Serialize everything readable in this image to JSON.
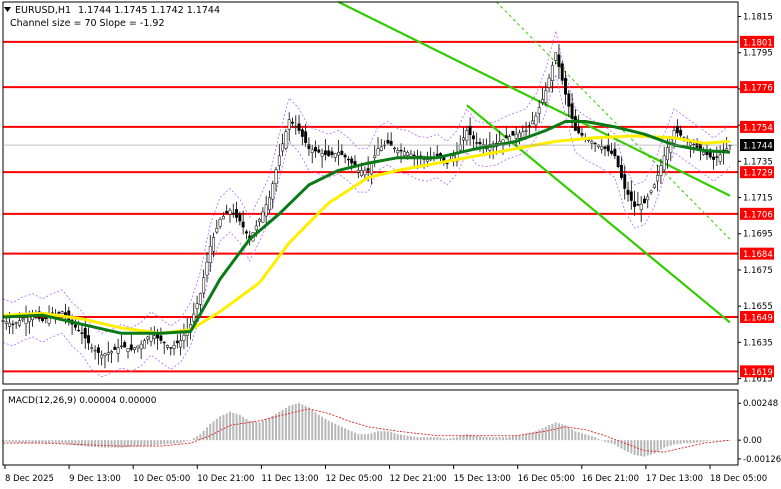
{
  "chart_data": {
    "type": "line",
    "symbol": "EURUSD,H1",
    "ohlc_header": "1.1744 1.1745 1.1742 1.1744",
    "indicator_text": "Channel size = 70 Slope = -1.92",
    "current_price": 1.1744,
    "ylim": [
      1.1612,
      1.1823
    ],
    "y_ticks": [
      "1.1815",
      "1.1795",
      "1.1775",
      "1.1755",
      "1.1735",
      "1.1715",
      "1.1695",
      "1.1675",
      "1.1655",
      "1.1635",
      "1.1615"
    ],
    "x_ticks": [
      "8 Dec 2025",
      "9 Dec 13:00",
      "10 Dec 05:00",
      "10 Dec 21:00",
      "11 Dec 13:00",
      "12 Dec 05:00",
      "12 Dec 21:00",
      "15 Dec 13:00",
      "16 Dec 05:00",
      "16 Dec 21:00",
      "17 Dec 13:00",
      "18 Dec 05:00"
    ],
    "levels": [
      {
        "label": "1.1801",
        "value": 1.1801
      },
      {
        "label": "1.1776",
        "value": 1.1776
      },
      {
        "label": "1.1754",
        "value": 1.1754
      },
      {
        "label": "1.1729",
        "value": 1.1729
      },
      {
        "label": "1.1706",
        "value": 1.1706
      },
      {
        "label": "1.1684",
        "value": 1.1684
      },
      {
        "label": "1.1649",
        "value": 1.1649
      },
      {
        "label": "1.1619",
        "value": 1.1619
      }
    ],
    "price_close": [
      [
        0,
        1.1647
      ],
      [
        3,
        1.1645
      ],
      [
        6,
        1.1648
      ],
      [
        9,
        1.165
      ],
      [
        12,
        1.1647
      ],
      [
        15,
        1.165
      ],
      [
        18,
        1.1652
      ],
      [
        21,
        1.1645
      ],
      [
        24,
        1.164
      ],
      [
        27,
        1.1632
      ],
      [
        30,
        1.1628
      ],
      [
        33,
        1.163
      ],
      [
        36,
        1.1633
      ],
      [
        39,
        1.1631
      ],
      [
        42,
        1.1634
      ],
      [
        45,
        1.164
      ],
      [
        48,
        1.1636
      ],
      [
        51,
        1.1632
      ],
      [
        54,
        1.1636
      ],
      [
        57,
        1.1645
      ],
      [
        60,
        1.1662
      ],
      [
        63,
        1.1688
      ],
      [
        66,
        1.1703
      ],
      [
        69,
        1.1708
      ],
      [
        72,
        1.1702
      ],
      [
        75,
        1.1692
      ],
      [
        78,
        1.1703
      ],
      [
        81,
        1.1715
      ],
      [
        84,
        1.1738
      ],
      [
        87,
        1.1758
      ],
      [
        90,
        1.1752
      ],
      [
        93,
        1.1742
      ],
      [
        96,
        1.174
      ],
      [
        99,
        1.1738
      ],
      [
        102,
        1.174
      ],
      [
        105,
        1.1736
      ],
      [
        108,
        1.173
      ],
      [
        111,
        1.173
      ],
      [
        114,
        1.1742
      ],
      [
        117,
        1.1745
      ],
      [
        120,
        1.1741
      ],
      [
        123,
        1.174
      ],
      [
        126,
        1.1737
      ],
      [
        129,
        1.1736
      ],
      [
        132,
        1.1738
      ],
      [
        135,
        1.1734
      ],
      [
        138,
        1.174
      ],
      [
        141,
        1.1752
      ],
      [
        144,
        1.1745
      ],
      [
        147,
        1.1744
      ],
      [
        150,
        1.1745
      ],
      [
        153,
        1.1748
      ],
      [
        156,
        1.175
      ],
      [
        159,
        1.1752
      ],
      [
        162,
        1.176
      ],
      [
        165,
        1.1774
      ],
      [
        168,
        1.1795
      ],
      [
        171,
        1.1772
      ],
      [
        174,
        1.1752
      ],
      [
        177,
        1.1748
      ],
      [
        180,
        1.1745
      ],
      [
        183,
        1.1742
      ],
      [
        186,
        1.1738
      ],
      [
        189,
        1.172
      ],
      [
        192,
        1.171
      ],
      [
        195,
        1.1712
      ],
      [
        198,
        1.1722
      ],
      [
        201,
        1.1738
      ],
      [
        204,
        1.1752
      ],
      [
        207,
        1.1748
      ],
      [
        210,
        1.1744
      ],
      [
        213,
        1.174
      ],
      [
        216,
        1.1736
      ],
      [
        219,
        1.174
      ],
      [
        221,
        1.1744
      ]
    ],
    "ma_green": [
      [
        0,
        1.1649
      ],
      [
        12,
        1.165
      ],
      [
        24,
        1.1645
      ],
      [
        36,
        1.164
      ],
      [
        48,
        1.164
      ],
      [
        57,
        1.1641
      ],
      [
        66,
        1.167
      ],
      [
        75,
        1.1692
      ],
      [
        84,
        1.1706
      ],
      [
        93,
        1.1722
      ],
      [
        102,
        1.173
      ],
      [
        111,
        1.1734
      ],
      [
        120,
        1.1737
      ],
      [
        132,
        1.1737
      ],
      [
        144,
        1.1742
      ],
      [
        156,
        1.1746
      ],
      [
        165,
        1.1752
      ],
      [
        171,
        1.1757
      ],
      [
        177,
        1.1757
      ],
      [
        186,
        1.1754
      ],
      [
        195,
        1.175
      ],
      [
        204,
        1.1744
      ],
      [
        213,
        1.1741
      ],
      [
        221,
        1.174
      ]
    ],
    "ma_yellow": [
      [
        0,
        1.165
      ],
      [
        12,
        1.1651
      ],
      [
        24,
        1.1648
      ],
      [
        36,
        1.1643
      ],
      [
        48,
        1.164
      ],
      [
        57,
        1.1642
      ],
      [
        66,
        1.1652
      ],
      [
        78,
        1.1668
      ],
      [
        87,
        1.169
      ],
      [
        99,
        1.1712
      ],
      [
        111,
        1.1726
      ],
      [
        120,
        1.173
      ],
      [
        132,
        1.1734
      ],
      [
        144,
        1.1738
      ],
      [
        156,
        1.1742
      ],
      [
        168,
        1.1746
      ],
      [
        180,
        1.1748
      ],
      [
        192,
        1.1749
      ],
      [
        204,
        1.1748
      ],
      [
        213,
        1.1745
      ],
      [
        221,
        1.1746
      ]
    ],
    "channel_lines": [
      {
        "points": [
          [
            102,
            1.1823
          ],
          [
            221,
            1.1716
          ]
        ]
      },
      {
        "points": [
          [
            141,
            1.1766
          ],
          [
            221,
            1.1646
          ]
        ]
      },
      {
        "points": [
          [
            150,
            1.1823
          ],
          [
            221,
            1.1692
          ]
        ]
      }
    ],
    "macd": {
      "label": "MACD(12,26,9) 0.00004 0.00000",
      "ylim": [
        -0.0014,
        0.0031
      ],
      "y_ticks": [
        "0.00248",
        "0.00",
        "-0.00126"
      ],
      "histogram": [
        [
          0,
          -0.0001
        ],
        [
          6,
          -0.0002
        ],
        [
          12,
          -0.0002
        ],
        [
          18,
          -0.0002
        ],
        [
          24,
          -0.0004
        ],
        [
          30,
          -0.0005
        ],
        [
          36,
          -0.0005
        ],
        [
          42,
          -0.0004
        ],
        [
          48,
          -0.0003
        ],
        [
          54,
          -0.0002
        ],
        [
          57,
          0.0
        ],
        [
          60,
          0.0004
        ],
        [
          63,
          0.0011
        ],
        [
          66,
          0.0016
        ],
        [
          69,
          0.0019
        ],
        [
          72,
          0.0017
        ],
        [
          75,
          0.0013
        ],
        [
          78,
          0.0012
        ],
        [
          81,
          0.0015
        ],
        [
          84,
          0.0019
        ],
        [
          87,
          0.0023
        ],
        [
          90,
          0.0025
        ],
        [
          93,
          0.0022
        ],
        [
          96,
          0.0017
        ],
        [
          99,
          0.0013
        ],
        [
          102,
          0.001
        ],
        [
          105,
          0.0007
        ],
        [
          108,
          0.0004
        ],
        [
          111,
          0.0004
        ],
        [
          114,
          0.0006
        ],
        [
          117,
          0.0006
        ],
        [
          120,
          0.0004
        ],
        [
          123,
          0.0003
        ],
        [
          126,
          0.0002
        ],
        [
          129,
          0.0002
        ],
        [
          132,
          0.0002
        ],
        [
          135,
          0.0001
        ],
        [
          138,
          0.0002
        ],
        [
          141,
          0.0004
        ],
        [
          144,
          0.0003
        ],
        [
          147,
          0.0002
        ],
        [
          150,
          0.0002
        ],
        [
          153,
          0.0002
        ],
        [
          156,
          0.0003
        ],
        [
          159,
          0.0004
        ],
        [
          162,
          0.0006
        ],
        [
          165,
          0.0009
        ],
        [
          168,
          0.0012
        ],
        [
          171,
          0.001
        ],
        [
          174,
          0.0006
        ],
        [
          177,
          0.0004
        ],
        [
          180,
          0.0002
        ],
        [
          183,
          -0.0001
        ],
        [
          186,
          -0.0003
        ],
        [
          189,
          -0.0007
        ],
        [
          192,
          -0.001
        ],
        [
          195,
          -0.0011
        ],
        [
          198,
          -0.0009
        ],
        [
          201,
          -0.0005
        ],
        [
          204,
          -0.0003
        ],
        [
          207,
          -0.0002
        ],
        [
          210,
          -0.0002
        ],
        [
          213,
          -0.0001
        ],
        [
          216,
          0.0
        ],
        [
          219,
          0.0
        ],
        [
          221,
          0.0
        ]
      ],
      "signal": [
        [
          0,
          -0.0002
        ],
        [
          12,
          -0.0002
        ],
        [
          24,
          -0.0003
        ],
        [
          36,
          -0.0004
        ],
        [
          48,
          -0.0004
        ],
        [
          57,
          -0.0002
        ],
        [
          63,
          0.0003
        ],
        [
          69,
          0.001
        ],
        [
          78,
          0.0013
        ],
        [
          87,
          0.0018
        ],
        [
          93,
          0.0021
        ],
        [
          99,
          0.0018
        ],
        [
          105,
          0.0013
        ],
        [
          111,
          0.0009
        ],
        [
          120,
          0.0006
        ],
        [
          132,
          0.0003
        ],
        [
          144,
          0.0003
        ],
        [
          156,
          0.0003
        ],
        [
          165,
          0.0006
        ],
        [
          171,
          0.0009
        ],
        [
          177,
          0.0007
        ],
        [
          183,
          0.0003
        ],
        [
          189,
          -0.0002
        ],
        [
          195,
          -0.0007
        ],
        [
          201,
          -0.0008
        ],
        [
          207,
          -0.0005
        ],
        [
          213,
          -0.0002
        ],
        [
          221,
          0.0
        ]
      ]
    },
    "colors": {
      "up_down_candles": "#000000",
      "levels": "#ff0000",
      "ma_green": "#0a7a16",
      "ma_yellow": "#ffee00",
      "channel": "#33cc00",
      "envelope": "#b266ff",
      "macd_hist": "#b8b8b8",
      "macd_signal": "#e02020",
      "level_tag": "#ff0000",
      "price_tag": "#000000"
    }
  }
}
